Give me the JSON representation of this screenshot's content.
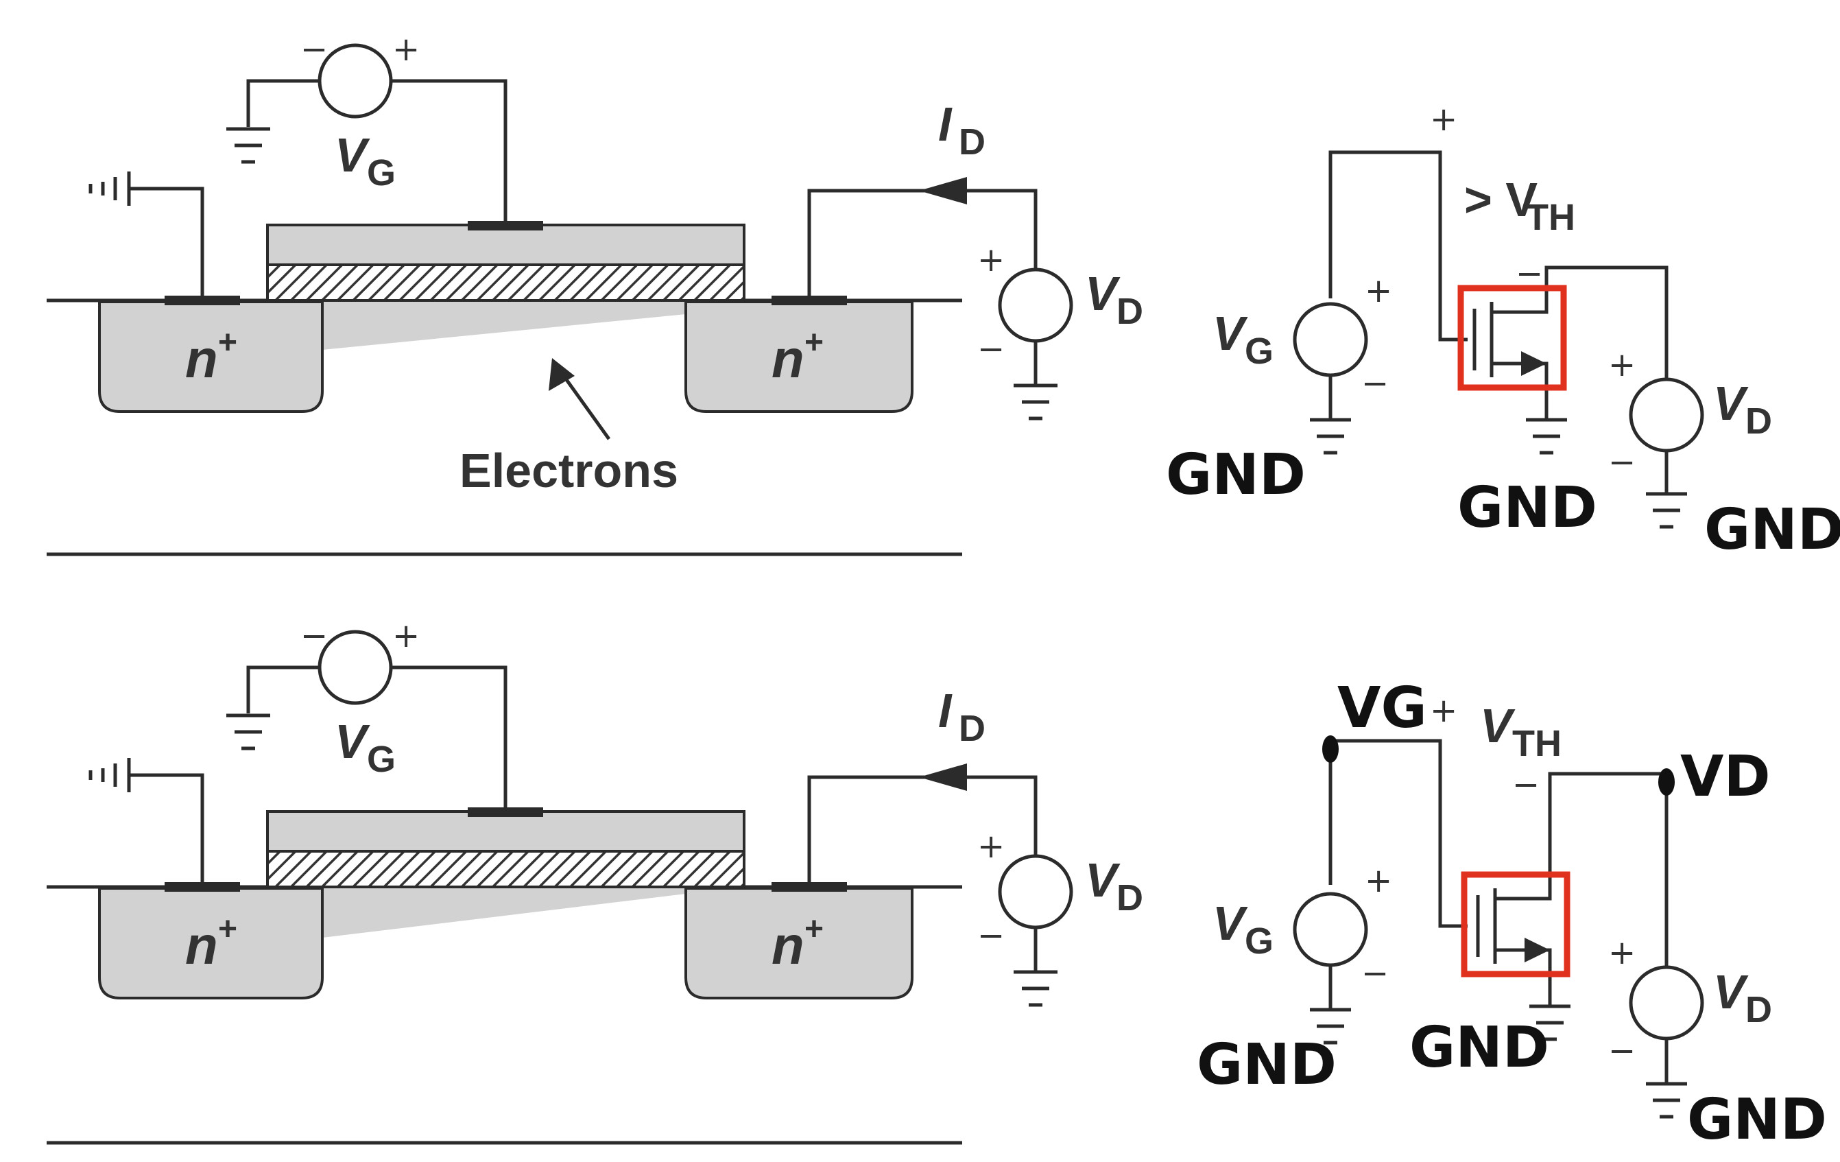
{
  "panel_top": {
    "cross_section": {
      "vg_label": "V",
      "vg_sub": "G",
      "id_label": "I",
      "id_sub": "D",
      "vd_label": "V",
      "vd_sub": "D",
      "n_left": "n",
      "n_right": "n",
      "n_sup": "+",
      "electrons_label": "Electrons"
    },
    "schematic": {
      "vth_label": "> V",
      "vth_sub": "TH",
      "vg_label": "V",
      "vg_sub": "G",
      "vd_label": "V",
      "vd_sub": "D",
      "gnd_1": "GND",
      "gnd_2": "GND",
      "gnd_3": "GND"
    }
  },
  "panel_bottom": {
    "cross_section": {
      "vg_label": "V",
      "vg_sub": "G",
      "id_label": "I",
      "id_sub": "D",
      "vd_label": "V",
      "vd_sub": "D",
      "n_left": "n",
      "n_right": "n",
      "n_sup": "+"
    },
    "schematic": {
      "vg_node": "VG",
      "vd_node": "VD",
      "vth_label": "V",
      "vth_sub": "TH",
      "vg_label": "V",
      "vg_sub": "G",
      "vd_label": "V",
      "vd_sub": "D",
      "gnd_1": "GND",
      "gnd_2": "GND",
      "gnd_3": "GND"
    }
  },
  "symbols": {
    "plus": "+",
    "minus": "−"
  },
  "colors": {
    "highlight": "#e0301e",
    "region": "#d2d2d2",
    "line": "#2b2b2b"
  }
}
